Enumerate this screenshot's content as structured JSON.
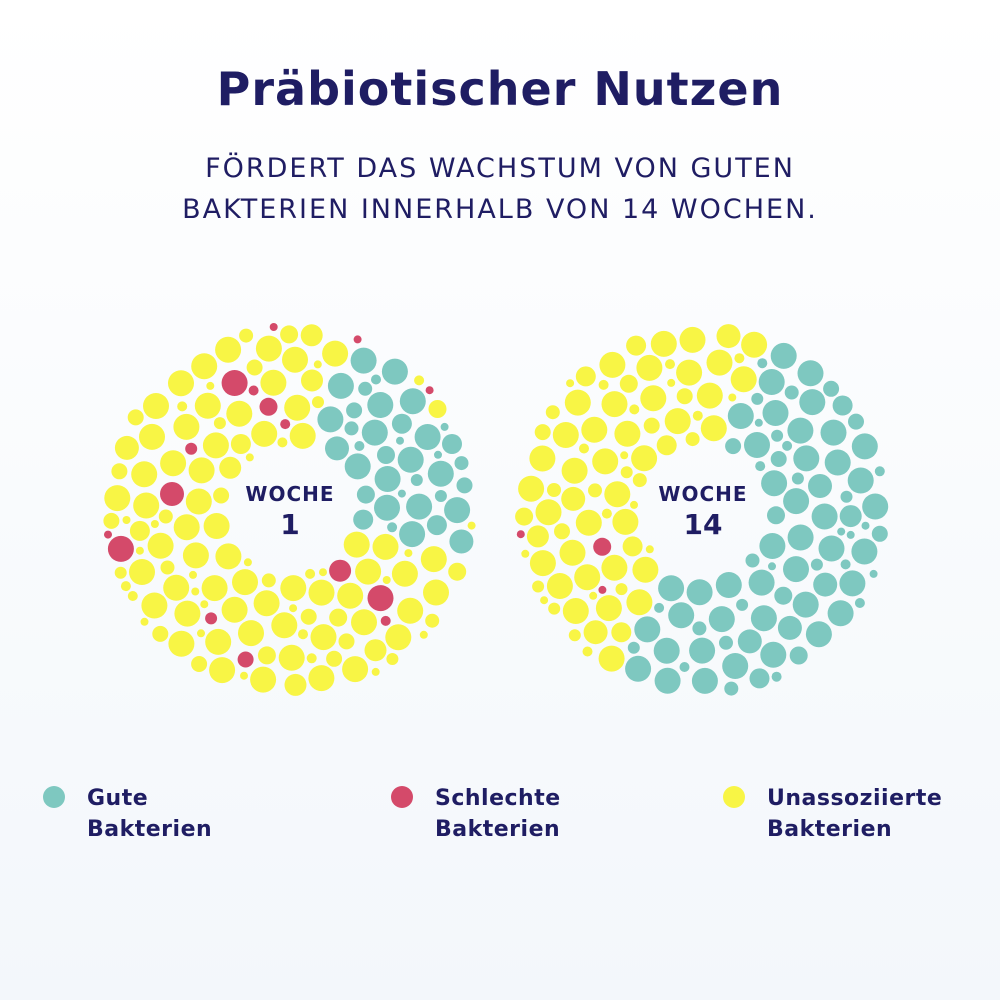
{
  "title": "Präbiotischer Nutzen",
  "subtitle": {
    "line1": "FÖRDERT DAS WACHSTUM VON GUTEN",
    "line2": "BAKTERIEN INNERHALB VON 14 WOCHEN."
  },
  "colors": {
    "good": "#7ec8c0",
    "bad": "#d44a6a",
    "unassociated": "#f8f545",
    "text": "#1f1d63"
  },
  "rings": [
    {
      "label": "WOCHE",
      "number": "1"
    },
    {
      "label": "WOCHE",
      "number": "14"
    }
  ],
  "legend": [
    {
      "line1": "Gute",
      "line2": "Bakterien",
      "color_key": "good"
    },
    {
      "line1": "Schlechte",
      "line2": "Bakterien",
      "color_key": "bad"
    },
    {
      "line1": "Unassoziierte",
      "line2": "Bakterien",
      "color_key": "unassociated"
    }
  ]
}
